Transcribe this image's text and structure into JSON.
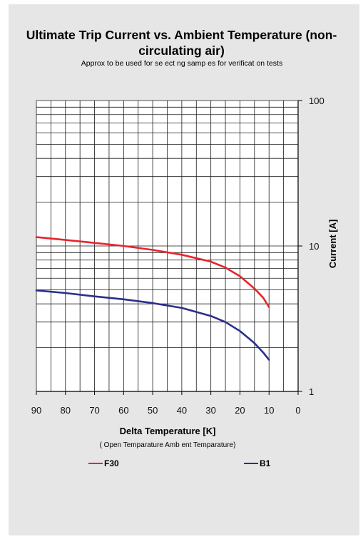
{
  "chart_data": {
    "type": "line",
    "title": "Ultimate Trip Current vs. Ambient Temperature (non-circulating air)",
    "subtitle": "Approx to be used for se ect ng samp es for verificat on tests",
    "xlabel": "Delta Temperature [K]",
    "xlabel_sub": "( Open Temparature Amb ent Temparature)",
    "ylabel": "Current [A]",
    "x_ticks": [
      90,
      80,
      70,
      60,
      50,
      40,
      30,
      20,
      10,
      0
    ],
    "y_ticks": [
      100,
      10,
      1
    ],
    "xlim": [
      90,
      0
    ],
    "ylim": [
      1,
      100
    ],
    "y_scale": "log",
    "grid": true,
    "legend_position": "bottom",
    "series": [
      {
        "name": "F30",
        "color": "#e8242b",
        "x": [
          90,
          80,
          70,
          60,
          50,
          40,
          30,
          25,
          20,
          15,
          12,
          10
        ],
        "y": [
          11.5,
          11.0,
          10.5,
          10.0,
          9.4,
          8.7,
          7.8,
          7.1,
          6.2,
          5.1,
          4.4,
          3.8
        ]
      },
      {
        "name": "B1",
        "color": "#2a2f8c",
        "x": [
          90,
          80,
          70,
          60,
          50,
          40,
          30,
          25,
          20,
          15,
          12,
          10
        ],
        "y": [
          4.95,
          4.75,
          4.5,
          4.3,
          4.05,
          3.75,
          3.3,
          3.0,
          2.6,
          2.15,
          1.85,
          1.65
        ]
      }
    ]
  }
}
